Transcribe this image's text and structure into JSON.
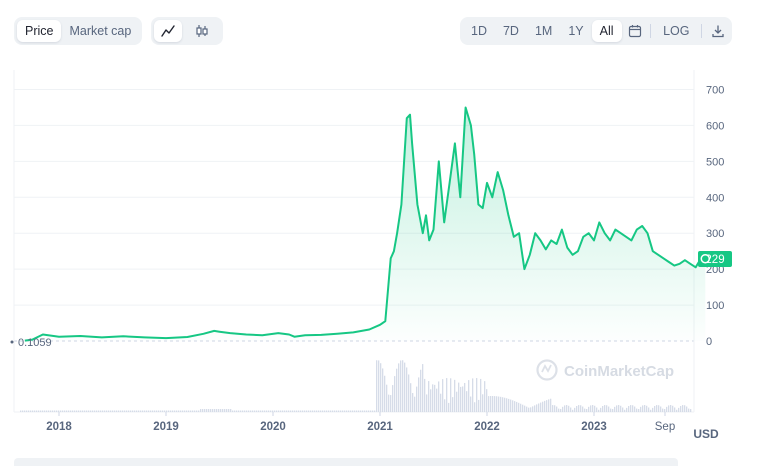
{
  "toolbar": {
    "price_label": "Price",
    "marketcap_label": "Market cap",
    "ranges": [
      "1D",
      "7D",
      "1M",
      "1Y",
      "All"
    ],
    "active_range": "All",
    "log_label": "LOG"
  },
  "watermark": "CoinMarketCap",
  "colors": {
    "line": "#16c784",
    "fill_top": "#16c784",
    "axis_text": "#58667e",
    "grid": "#eff2f5",
    "volume": "#cfd6e4",
    "badge": "#16c784"
  },
  "chart_data": {
    "type": "area",
    "x_ticks": [
      "2018",
      "2019",
      "2020",
      "2021",
      "2022",
      "2023",
      "Sep"
    ],
    "y_ticks": [
      0,
      100,
      200,
      300,
      400,
      500,
      600,
      700
    ],
    "ylim": [
      0,
      700
    ],
    "y_unit_label": "USD",
    "start_label": "0.1059",
    "current_value_label": "229",
    "series": [
      {
        "values_x": [
          2017.68,
          2017.75,
          2017.85,
          2018.0,
          2018.2,
          2018.4,
          2018.6,
          2018.8,
          2019.0,
          2019.2,
          2019.35,
          2019.45,
          2019.5,
          2019.6,
          2019.75,
          2019.9,
          2020.05,
          2020.15,
          2020.2,
          2020.3,
          2020.45,
          2020.6,
          2020.75,
          2020.9,
          2021.0,
          2021.05,
          2021.1,
          2021.13,
          2021.16,
          2021.2,
          2021.25,
          2021.28,
          2021.3,
          2021.35,
          2021.4,
          2021.43,
          2021.46,
          2021.5,
          2021.55,
          2021.6,
          2021.65,
          2021.7,
          2021.75,
          2021.8,
          2021.85,
          2021.88,
          2021.92,
          2021.96,
          2022.0,
          2022.05,
          2022.1,
          2022.15,
          2022.2,
          2022.25,
          2022.3,
          2022.35,
          2022.4,
          2022.45,
          2022.5,
          2022.55,
          2022.6,
          2022.65,
          2022.7,
          2022.75,
          2022.8,
          2022.85,
          2022.9,
          2022.95,
          2023.0,
          2023.05,
          2023.1,
          2023.15,
          2023.2,
          2023.25,
          2023.3,
          2023.35,
          2023.4,
          2023.45,
          2023.5,
          2023.55,
          2023.6,
          2023.65,
          2023.7,
          2023.75,
          2023.8,
          2023.85,
          2023.9,
          2023.95,
          2024.0,
          2024.04
        ],
        "values_y": [
          1,
          4,
          18,
          12,
          14,
          10,
          13,
          10,
          8,
          11,
          20,
          28,
          26,
          22,
          18,
          16,
          22,
          18,
          12,
          16,
          17,
          20,
          24,
          32,
          45,
          55,
          230,
          250,
          300,
          380,
          620,
          630,
          550,
          380,
          300,
          350,
          280,
          310,
          500,
          330,
          440,
          550,
          400,
          650,
          600,
          520,
          380,
          370,
          440,
          400,
          470,
          420,
          350,
          290,
          300,
          200,
          240,
          300,
          280,
          255,
          280,
          270,
          310,
          260,
          240,
          250,
          290,
          300,
          280,
          330,
          300,
          280,
          310,
          300,
          290,
          280,
          310,
          320,
          300,
          250,
          240,
          230,
          220,
          210,
          215,
          225,
          215,
          205,
          230,
          229
        ]
      }
    ]
  }
}
